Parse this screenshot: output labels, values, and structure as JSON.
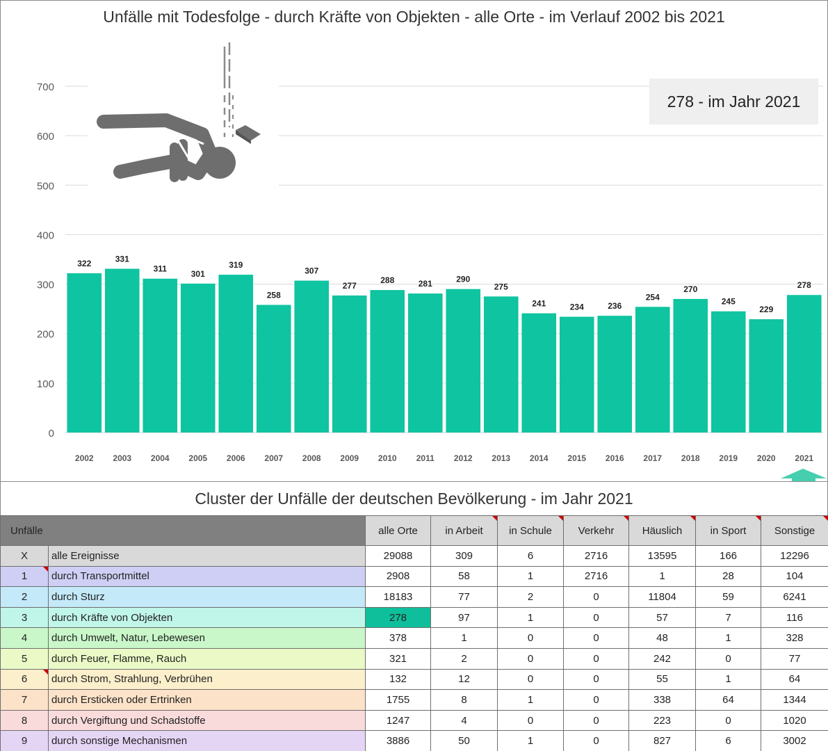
{
  "header": {
    "title": "Unfälle mit Todesfolge - durch Kräfte von Objekten - alle Orte - im Verlauf 2002 bis 2021"
  },
  "highlight": {
    "text": "278 - im Jahr 2021"
  },
  "colors": {
    "bar": "#0fc4a0",
    "grid": "#d9d9d9",
    "axis_text": "#595959",
    "arrow": "#45cfaf",
    "icon": "#6e6e6e"
  },
  "icons": [
    "person-hit-by-falling-object-icon",
    "arrow-up-icon"
  ],
  "chart_data": {
    "type": "bar",
    "categories": [
      "2002",
      "2003",
      "2004",
      "2005",
      "2006",
      "2007",
      "2008",
      "2009",
      "2010",
      "2011",
      "2012",
      "2013",
      "2014",
      "2015",
      "2016",
      "2017",
      "2018",
      "2019",
      "2020",
      "2021"
    ],
    "values": [
      322,
      331,
      311,
      301,
      319,
      258,
      307,
      277,
      288,
      281,
      290,
      275,
      241,
      234,
      236,
      254,
      270,
      245,
      229,
      278
    ],
    "y_ticks": [
      0,
      100,
      200,
      300,
      400,
      500,
      600,
      700
    ],
    "ylim": [
      0,
      750
    ],
    "grid": true,
    "data_labels": true
  },
  "cluster": {
    "title": "Cluster der Unfälle der deutschen Bevölkerung - im Jahr 2021",
    "columns": [
      "Unfälle",
      "alle Orte",
      "in Arbeit",
      "in Schule",
      "Verkehr",
      "Häuslich",
      "in Sport",
      "Sonstige"
    ],
    "rows": [
      {
        "idx": "X",
        "label": "alle Ereignisse",
        "color": "#d9d9d9",
        "values": [
          "29088",
          "309",
          "6",
          "2716",
          "13595",
          "166",
          "12296"
        ]
      },
      {
        "idx": "1",
        "label": "durch Transportmittel",
        "color": "#cfcff5",
        "values": [
          "2908",
          "58",
          "1",
          "2716",
          "1",
          "28",
          "104"
        ]
      },
      {
        "idx": "2",
        "label": "durch Sturz",
        "color": "#c4e9f9",
        "values": [
          "18183",
          "77",
          "2",
          "0",
          "11804",
          "59",
          "6241"
        ]
      },
      {
        "idx": "3",
        "label": "durch Kräfte von Objekten",
        "color": "#c0f5e9",
        "values": [
          "278",
          "97",
          "1",
          "0",
          "57",
          "7",
          "116"
        ]
      },
      {
        "idx": "4",
        "label": "durch Umwelt, Natur, Lebewesen",
        "color": "#c9f7c9",
        "values": [
          "378",
          "1",
          "0",
          "0",
          "48",
          "1",
          "328"
        ]
      },
      {
        "idx": "5",
        "label": "durch Feuer, Flamme, Rauch",
        "color": "#eaf9c6",
        "values": [
          "321",
          "2",
          "0",
          "0",
          "242",
          "0",
          "77"
        ]
      },
      {
        "idx": "6",
        "label": "durch Strom, Strahlung, Verbrühen",
        "color": "#fcefcb",
        "values": [
          "132",
          "12",
          "0",
          "0",
          "55",
          "1",
          "64"
        ]
      },
      {
        "idx": "7",
        "label": "durch Ersticken oder Ertrinken",
        "color": "#fce2c8",
        "values": [
          "1755",
          "8",
          "1",
          "0",
          "338",
          "64",
          "1344"
        ]
      },
      {
        "idx": "8",
        "label": "durch Vergiftung und Schadstoffe",
        "color": "#fadbdb",
        "values": [
          "1247",
          "4",
          "0",
          "0",
          "223",
          "0",
          "1020"
        ]
      },
      {
        "idx": "9",
        "label": "durch sonstige Mechanismen",
        "color": "#e5d5f5",
        "values": [
          "3886",
          "50",
          "1",
          "0",
          "827",
          "6",
          "3002"
        ]
      }
    ]
  }
}
